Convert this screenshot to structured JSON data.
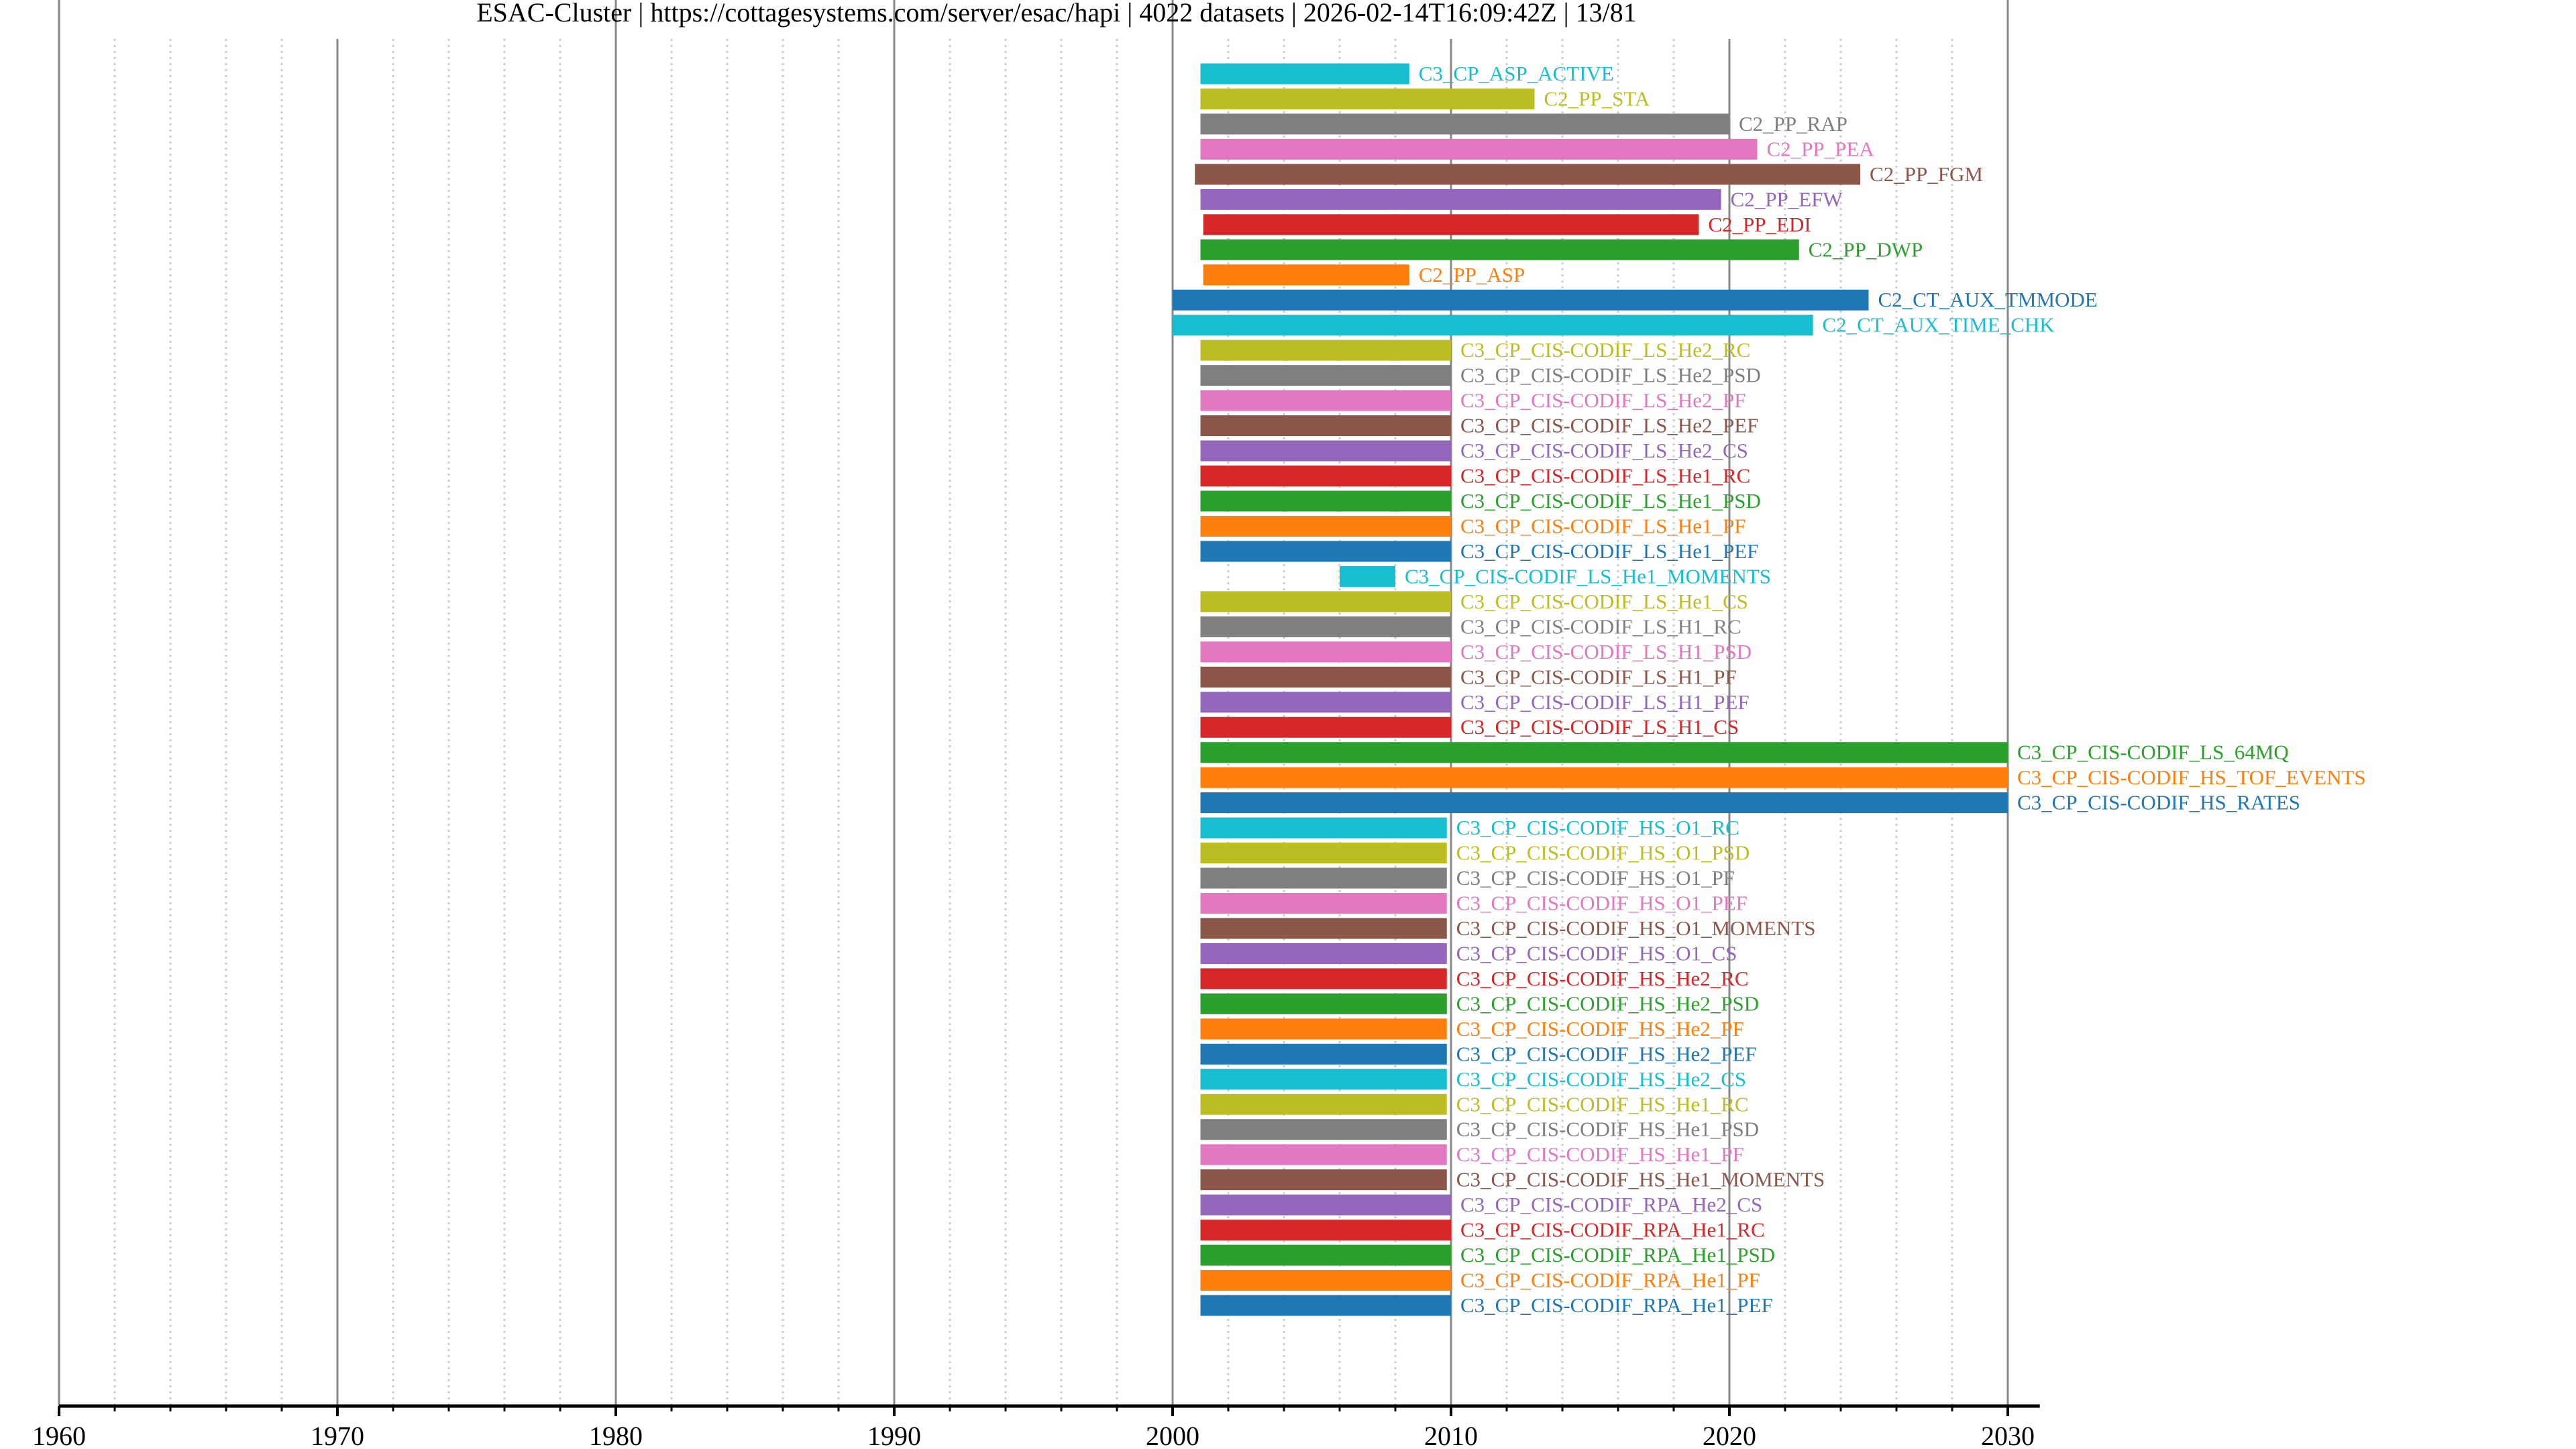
{
  "title": "ESAC-Cluster | https://cottagesystems.com/server/esac/hapi | 4022 datasets | 2026-02-14T16:09:42Z | 13/81",
  "chart_data": {
    "type": "bar",
    "orientation": "horizontal",
    "subtype": "timeline (dataset start/stop date ranges)",
    "title": "ESAC-Cluster | https://cottagesystems.com/server/esac/hapi | 4022 datasets | 2026-02-14T16:09:42Z | 13/81",
    "xlabel": "",
    "ylabel": "",
    "xlim": [
      1960,
      2031.15
    ],
    "x_major_ticks": [
      1960,
      1970,
      1980,
      1990,
      2000,
      2010,
      2020,
      2030
    ],
    "x_tick_labels": [
      "1960",
      "1970",
      "1980",
      "1990",
      "2000",
      "2010",
      "2020",
      "2030"
    ],
    "x_minor_tick_step": 2,
    "grid": {
      "major": "solid gray vertical",
      "minor": "dotted light gray vertical"
    },
    "legend": "none (labels placed at bar ends)",
    "series": [
      {
        "name": "C3_CP_ASP_ACTIVE",
        "start": 2001.0,
        "stop": 2008.5,
        "color": "#17becf"
      },
      {
        "name": "C2_PP_STA",
        "start": 2001.0,
        "stop": 2013.0,
        "color": "#bcbd22"
      },
      {
        "name": "C2_PP_RAP",
        "start": 2001.0,
        "stop": 2020.0,
        "color": "#7f7f7f"
      },
      {
        "name": "C2_PP_PEA",
        "start": 2001.0,
        "stop": 2021.0,
        "color": "#e377c2"
      },
      {
        "name": "C2_PP_FGM",
        "start": 2000.8,
        "stop": 2024.7,
        "color": "#8c564b"
      },
      {
        "name": "C2_PP_EFW",
        "start": 2001.0,
        "stop": 2019.7,
        "color": "#9467bd"
      },
      {
        "name": "C2_PP_EDI",
        "start": 2001.1,
        "stop": 2018.9,
        "color": "#d62728"
      },
      {
        "name": "C2_PP_DWP",
        "start": 2001.0,
        "stop": 2022.5,
        "color": "#2ca02c"
      },
      {
        "name": "C2_PP_ASP",
        "start": 2001.1,
        "stop": 2008.5,
        "color": "#ff7f0e"
      },
      {
        "name": "C2_CT_AUX_TMMODE",
        "start": 2000.0,
        "stop": 2025.0,
        "color": "#1f77b4"
      },
      {
        "name": "C2_CT_AUX_TIME_CHK",
        "start": 2000.0,
        "stop": 2023.0,
        "color": "#17becf"
      },
      {
        "name": "C3_CP_CIS-CODIF_LS_He2_RC",
        "start": 2001.0,
        "stop": 2010.0,
        "color": "#bcbd22"
      },
      {
        "name": "C3_CP_CIS-CODIF_LS_He2_PSD",
        "start": 2001.0,
        "stop": 2010.0,
        "color": "#7f7f7f"
      },
      {
        "name": "C3_CP_CIS-CODIF_LS_He2_PF",
        "start": 2001.0,
        "stop": 2010.0,
        "color": "#e377c2"
      },
      {
        "name": "C3_CP_CIS-CODIF_LS_He2_PEF",
        "start": 2001.0,
        "stop": 2010.0,
        "color": "#8c564b"
      },
      {
        "name": "C3_CP_CIS-CODIF_LS_He2_CS",
        "start": 2001.0,
        "stop": 2010.0,
        "color": "#9467bd"
      },
      {
        "name": "C3_CP_CIS-CODIF_LS_He1_RC",
        "start": 2001.0,
        "stop": 2010.0,
        "color": "#d62728"
      },
      {
        "name": "C3_CP_CIS-CODIF_LS_He1_PSD",
        "start": 2001.0,
        "stop": 2010.0,
        "color": "#2ca02c"
      },
      {
        "name": "C3_CP_CIS-CODIF_LS_He1_PF",
        "start": 2001.0,
        "stop": 2010.0,
        "color": "#ff7f0e"
      },
      {
        "name": "C3_CP_CIS-CODIF_LS_He1_PEF",
        "start": 2001.0,
        "stop": 2010.0,
        "color": "#1f77b4"
      },
      {
        "name": "C3_CP_CIS-CODIF_LS_He1_MOMENTS",
        "start": 2006.0,
        "stop": 2008.0,
        "color": "#17becf"
      },
      {
        "name": "C3_CP_CIS-CODIF_LS_He1_CS",
        "start": 2001.0,
        "stop": 2010.0,
        "color": "#bcbd22"
      },
      {
        "name": "C3_CP_CIS-CODIF_LS_H1_RC",
        "start": 2001.0,
        "stop": 2010.0,
        "color": "#7f7f7f"
      },
      {
        "name": "C3_CP_CIS-CODIF_LS_H1_PSD",
        "start": 2001.0,
        "stop": 2010.0,
        "color": "#e377c2"
      },
      {
        "name": "C3_CP_CIS-CODIF_LS_H1_PF",
        "start": 2001.0,
        "stop": 2010.0,
        "color": "#8c564b"
      },
      {
        "name": "C3_CP_CIS-CODIF_LS_H1_PEF",
        "start": 2001.0,
        "stop": 2010.0,
        "color": "#9467bd"
      },
      {
        "name": "C3_CP_CIS-CODIF_LS_H1_CS",
        "start": 2001.0,
        "stop": 2010.0,
        "color": "#d62728"
      },
      {
        "name": "C3_CP_CIS-CODIF_LS_64MQ",
        "start": 2001.0,
        "stop": 2030.0,
        "color": "#2ca02c"
      },
      {
        "name": "C3_CP_CIS-CODIF_HS_TOF_EVENTS",
        "start": 2001.0,
        "stop": 2030.0,
        "color": "#ff7f0e"
      },
      {
        "name": "C3_CP_CIS-CODIF_HS_RATES",
        "start": 2001.0,
        "stop": 2030.0,
        "color": "#1f77b4"
      },
      {
        "name": "C3_CP_CIS-CODIF_HS_O1_RC",
        "start": 2001.0,
        "stop": 2009.85,
        "color": "#17becf"
      },
      {
        "name": "C3_CP_CIS-CODIF_HS_O1_PSD",
        "start": 2001.0,
        "stop": 2009.85,
        "color": "#bcbd22"
      },
      {
        "name": "C3_CP_CIS-CODIF_HS_O1_PF",
        "start": 2001.0,
        "stop": 2009.85,
        "color": "#7f7f7f"
      },
      {
        "name": "C3_CP_CIS-CODIF_HS_O1_PEF",
        "start": 2001.0,
        "stop": 2009.85,
        "color": "#e377c2"
      },
      {
        "name": "C3_CP_CIS-CODIF_HS_O1_MOMENTS",
        "start": 2001.0,
        "stop": 2009.85,
        "color": "#8c564b"
      },
      {
        "name": "C3_CP_CIS-CODIF_HS_O1_CS",
        "start": 2001.0,
        "stop": 2009.85,
        "color": "#9467bd"
      },
      {
        "name": "C3_CP_CIS-CODIF_HS_He2_RC",
        "start": 2001.0,
        "stop": 2009.85,
        "color": "#d62728"
      },
      {
        "name": "C3_CP_CIS-CODIF_HS_He2_PSD",
        "start": 2001.0,
        "stop": 2009.85,
        "color": "#2ca02c"
      },
      {
        "name": "C3_CP_CIS-CODIF_HS_He2_PF",
        "start": 2001.0,
        "stop": 2009.85,
        "color": "#ff7f0e"
      },
      {
        "name": "C3_CP_CIS-CODIF_HS_He2_PEF",
        "start": 2001.0,
        "stop": 2009.85,
        "color": "#1f77b4"
      },
      {
        "name": "C3_CP_CIS-CODIF_HS_He2_CS",
        "start": 2001.0,
        "stop": 2009.85,
        "color": "#17becf"
      },
      {
        "name": "C3_CP_CIS-CODIF_HS_He1_RC",
        "start": 2001.0,
        "stop": 2009.85,
        "color": "#bcbd22"
      },
      {
        "name": "C3_CP_CIS-CODIF_HS_He1_PSD",
        "start": 2001.0,
        "stop": 2009.85,
        "color": "#7f7f7f"
      },
      {
        "name": "C3_CP_CIS-CODIF_HS_He1_PF",
        "start": 2001.0,
        "stop": 2009.85,
        "color": "#e377c2"
      },
      {
        "name": "C3_CP_CIS-CODIF_HS_He1_MOMENTS",
        "start": 2001.0,
        "stop": 2009.85,
        "color": "#8c564b"
      },
      {
        "name": "C3_CP_CIS-CODIF_RPA_He2_CS",
        "start": 2001.0,
        "stop": 2010.0,
        "color": "#9467bd"
      },
      {
        "name": "C3_CP_CIS-CODIF_RPA_He1_RC",
        "start": 2001.0,
        "stop": 2010.0,
        "color": "#d62728"
      },
      {
        "name": "C3_CP_CIS-CODIF_RPA_He1_PSD",
        "start": 2001.0,
        "stop": 2010.0,
        "color": "#2ca02c"
      },
      {
        "name": "C3_CP_CIS-CODIF_RPA_He1_PF",
        "start": 2001.0,
        "stop": 2010.0,
        "color": "#ff7f0e"
      },
      {
        "name": "C3_CP_CIS-CODIF_RPA_He1_PEF",
        "start": 2001.0,
        "stop": 2010.0,
        "color": "#1f77b4"
      }
    ]
  }
}
